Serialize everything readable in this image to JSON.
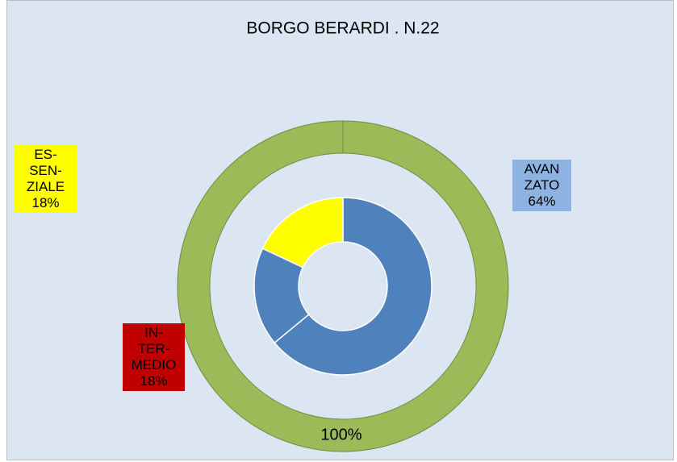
{
  "chart_data": {
    "type": "doughnut",
    "title": "BORGO BERARDI . N.22",
    "rings": [
      {
        "values": [
          100
        ],
        "value_labels": [
          "100%"
        ],
        "colors": [
          "#9bbb59"
        ]
      },
      {
        "categories": [
          [
            "AVAN",
            "ZATO"
          ],
          [
            "IN-",
            "TER-",
            "MEDIO"
          ],
          [
            "ES-",
            "SEN-",
            "ZIALE"
          ]
        ],
        "values": [
          64,
          18,
          18
        ],
        "value_labels": [
          "64%",
          "18%",
          "18%"
        ],
        "colors": [
          "#4f81bd",
          "#4f81bd",
          "#ffff00"
        ],
        "label_colors": [
          "#8db3e2",
          "#c00000",
          "#ffff00"
        ]
      }
    ]
  }
}
